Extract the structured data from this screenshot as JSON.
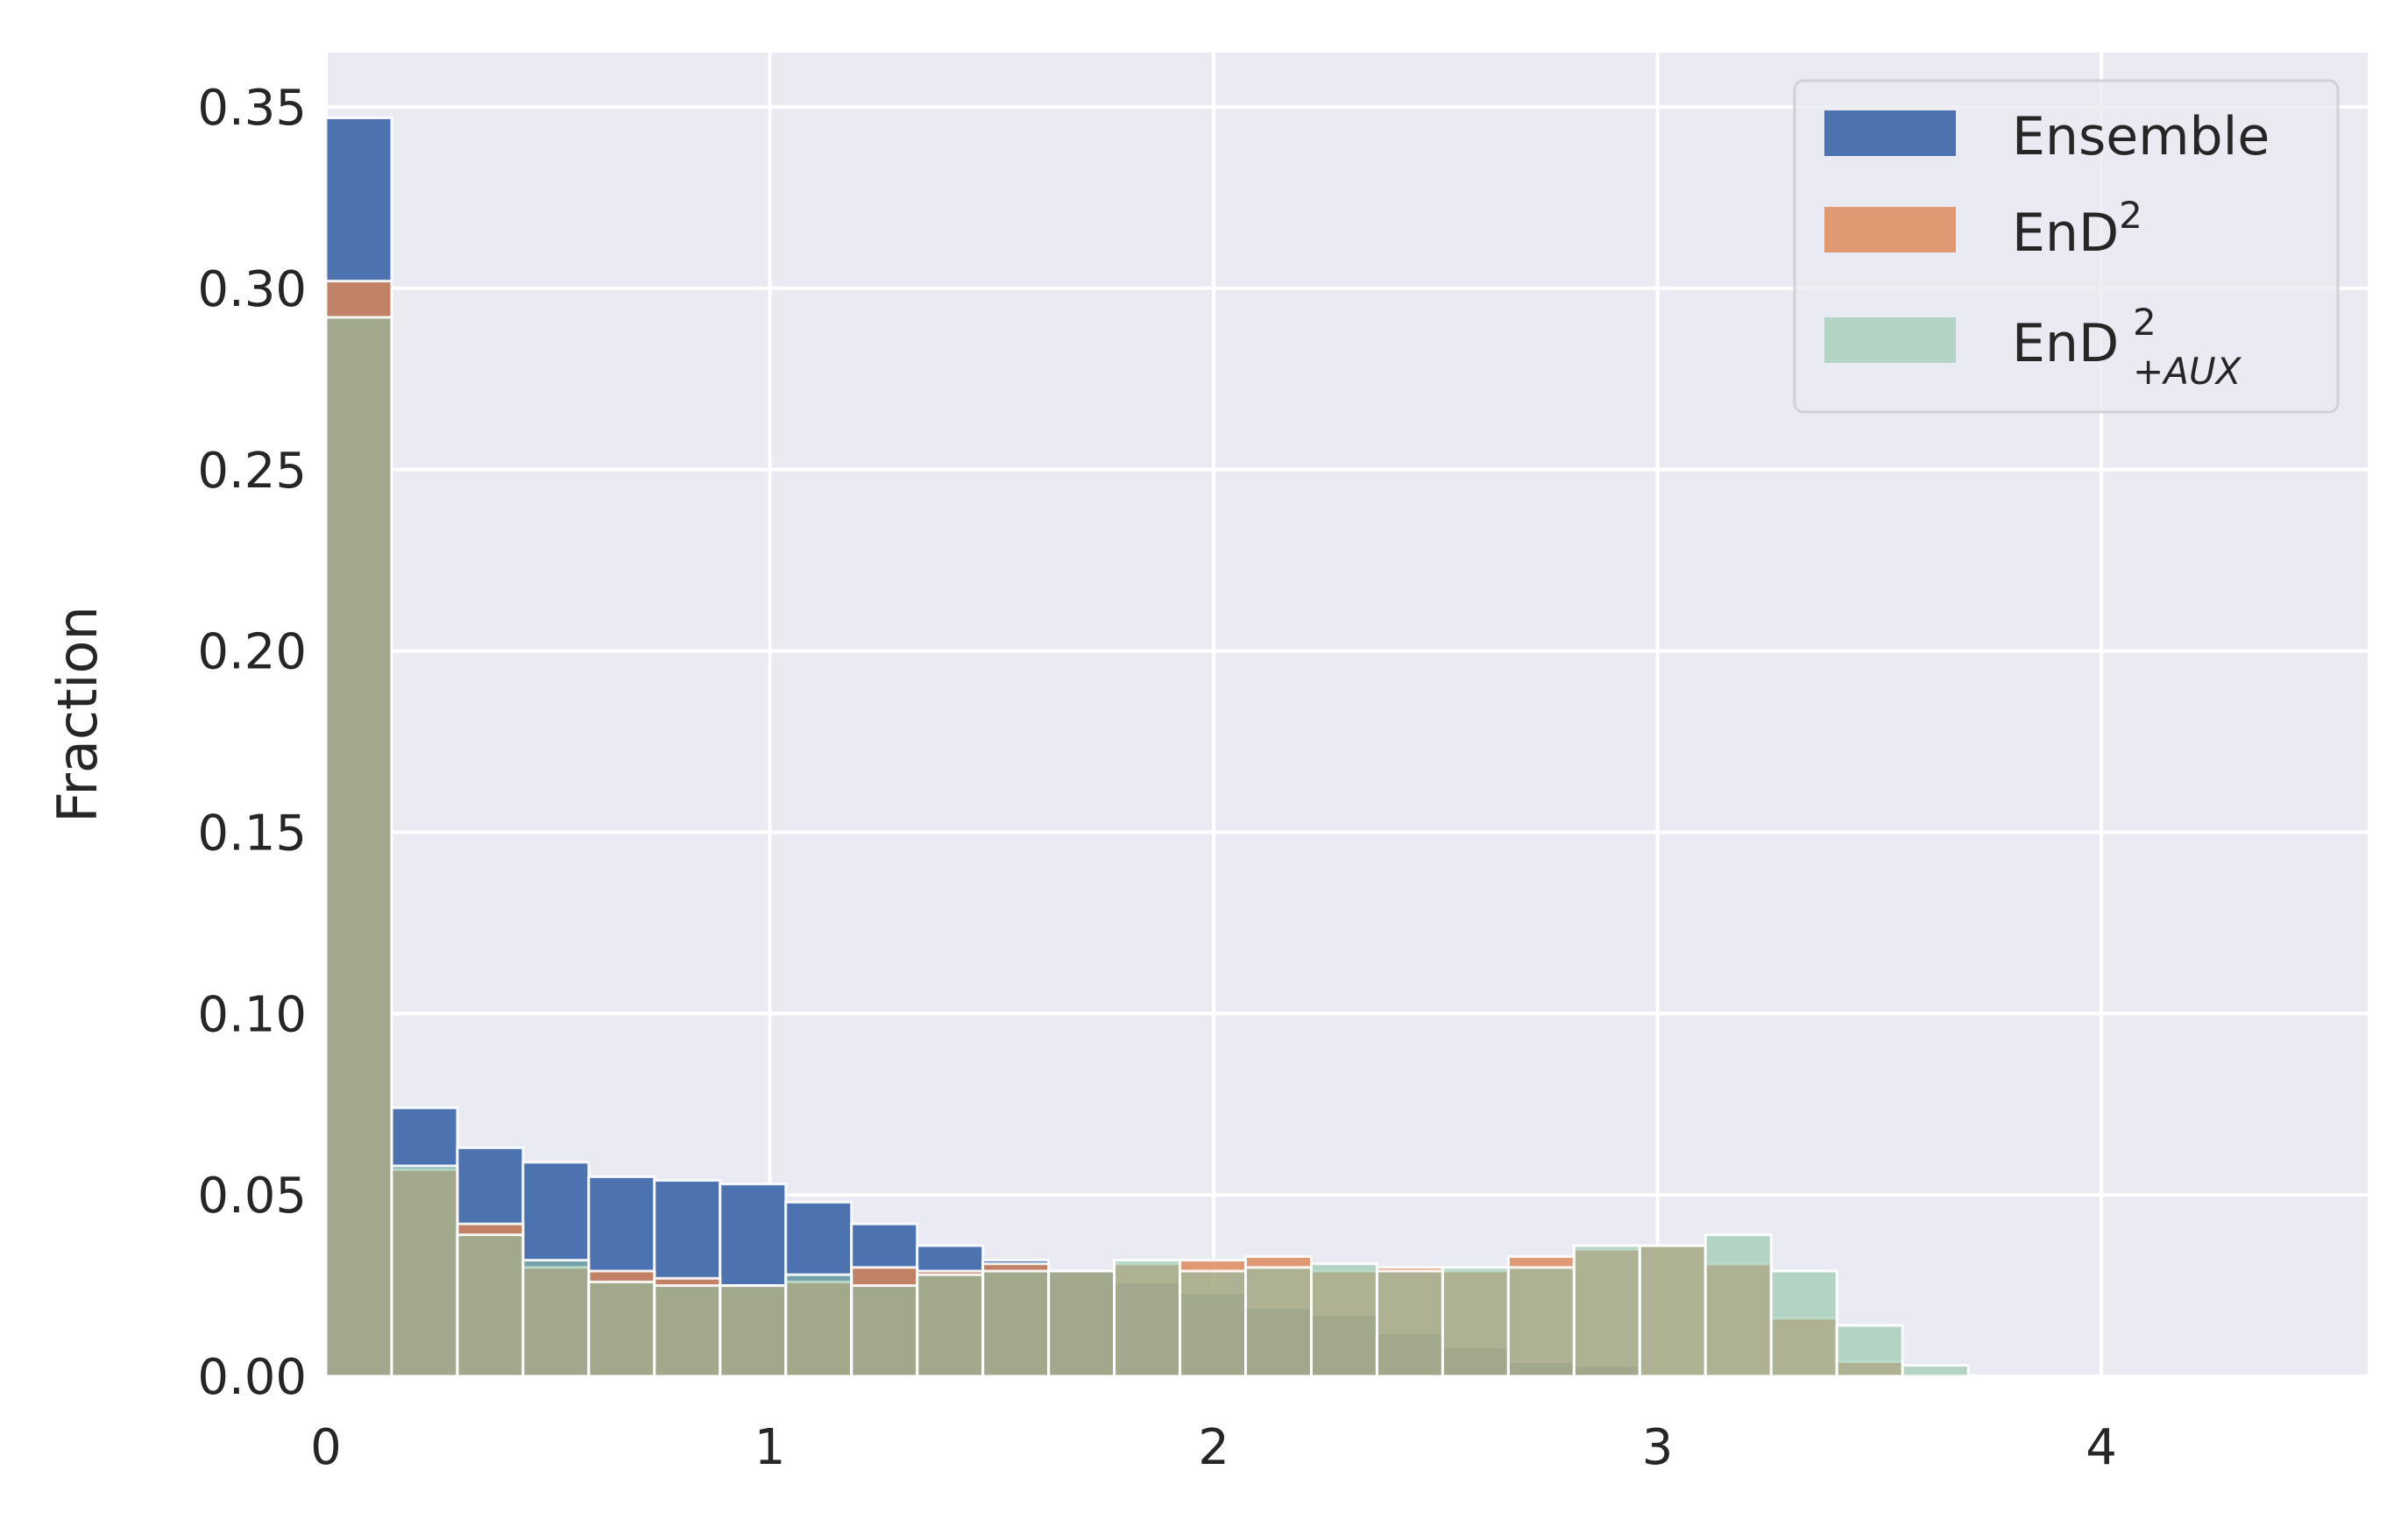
{
  "chart_data": {
    "type": "bar",
    "title": "",
    "xlabel": "",
    "ylabel": "Fraction",
    "xlim": [
      0,
      4.6
    ],
    "ylim": [
      0,
      0.365
    ],
    "xticks": [
      0,
      1,
      2,
      3,
      4
    ],
    "xtick_labels": [
      "0",
      "1",
      "2",
      "3",
      "4"
    ],
    "yticks": [
      0.0,
      0.05,
      0.1,
      0.15,
      0.2,
      0.25,
      0.3,
      0.35
    ],
    "ytick_labels": [
      "0.00",
      "0.05",
      "0.10",
      "0.15",
      "0.20",
      "0.25",
      "0.30",
      "0.35"
    ],
    "grid": true,
    "background": "#eaeaf2",
    "legend_position": "top-right",
    "bin_edges": [
      0.0,
      0.148,
      0.296,
      0.444,
      0.592,
      0.74,
      0.888,
      1.036,
      1.184,
      1.332,
      1.48,
      1.628,
      1.776,
      1.924,
      2.072,
      2.22,
      2.368,
      2.516,
      2.664,
      2.812,
      2.96,
      3.108,
      3.256,
      3.404,
      3.552,
      3.7
    ],
    "series": [
      {
        "name": "Ensemble",
        "color": "#4c72b0",
        "alpha": 1.0,
        "values": [
          0.347,
          0.074,
          0.063,
          0.059,
          0.055,
          0.054,
          0.053,
          0.048,
          0.042,
          0.036,
          0.032,
          0.029,
          0.026,
          0.023,
          0.019,
          0.017,
          0.012,
          0.008,
          0.004,
          0.003,
          0.0,
          0.0,
          0.0,
          0.0,
          0.0
        ]
      },
      {
        "name": "EnD",
        "name_superscript": "2",
        "color": "#dd8452",
        "alpha": 0.8,
        "values": [
          0.302,
          0.057,
          0.042,
          0.03,
          0.029,
          0.027,
          0.025,
          0.026,
          0.03,
          0.029,
          0.031,
          0.029,
          0.031,
          0.032,
          0.033,
          0.029,
          0.03,
          0.029,
          0.033,
          0.035,
          0.036,
          0.031,
          0.016,
          0.004,
          0.0
        ]
      },
      {
        "name": "EnD",
        "name_superscript": "2",
        "name_subscript": "+AUX",
        "color": "#8ec3a6",
        "alpha": 0.6,
        "values": [
          0.292,
          0.058,
          0.039,
          0.032,
          0.026,
          0.025,
          0.025,
          0.028,
          0.025,
          0.028,
          0.029,
          0.029,
          0.032,
          0.029,
          0.03,
          0.031,
          0.029,
          0.03,
          0.03,
          0.036,
          0.036,
          0.039,
          0.029,
          0.014,
          0.003
        ]
      }
    ]
  }
}
